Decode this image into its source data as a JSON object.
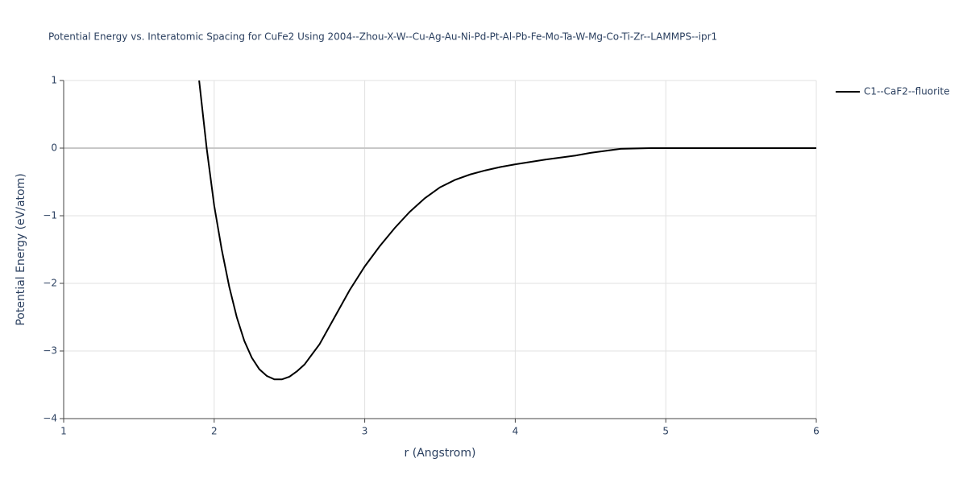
{
  "chart_data": {
    "type": "line",
    "title": "Potential Energy vs. Interatomic Spacing for CuFe2 Using 2004--Zhou-X-W--Cu-Ag-Au-Ni-Pd-Pt-Al-Pb-Fe-Mo-Ta-W-Mg-Co-Ti-Zr--LAMMPS--ipr1",
    "x_label": "r (Angstrom)",
    "y_label": "Potential Energy (eV/atom)",
    "x": [
      1.9,
      1.95,
      2.0,
      2.05,
      2.1,
      2.15,
      2.2,
      2.25,
      2.3,
      2.35,
      2.4,
      2.45,
      2.5,
      2.55,
      2.6,
      2.7,
      2.8,
      2.9,
      3.0,
      3.1,
      3.2,
      3.3,
      3.4,
      3.5,
      3.6,
      3.7,
      3.8,
      3.9,
      4.0,
      4.2,
      4.4,
      4.5,
      4.6,
      4.7,
      4.9,
      5.5,
      6.0
    ],
    "series": [
      {
        "name": "C1--CaF2--fluorite",
        "color": "#000000",
        "values": [
          1.0,
          0.0,
          -0.85,
          -1.5,
          -2.05,
          -2.5,
          -2.85,
          -3.1,
          -3.27,
          -3.37,
          -3.42,
          -3.42,
          -3.38,
          -3.3,
          -3.2,
          -2.9,
          -2.5,
          -2.1,
          -1.75,
          -1.45,
          -1.18,
          -0.94,
          -0.74,
          -0.58,
          -0.47,
          -0.39,
          -0.33,
          -0.28,
          -0.24,
          -0.17,
          -0.11,
          -0.07,
          -0.04,
          -0.01,
          0.0,
          0.0,
          0.0
        ]
      }
    ],
    "xlim": [
      1,
      6
    ],
    "ylim": [
      -4,
      1
    ],
    "xticks": [
      1,
      2,
      3,
      4,
      5,
      6
    ],
    "yticks": [
      {
        "value": -4,
        "label": "−4"
      },
      {
        "value": -3,
        "label": "−3"
      },
      {
        "value": -2,
        "label": "−2"
      },
      {
        "value": -1,
        "label": "−1"
      },
      0,
      1
    ],
    "grid": true,
    "legend": "right"
  }
}
